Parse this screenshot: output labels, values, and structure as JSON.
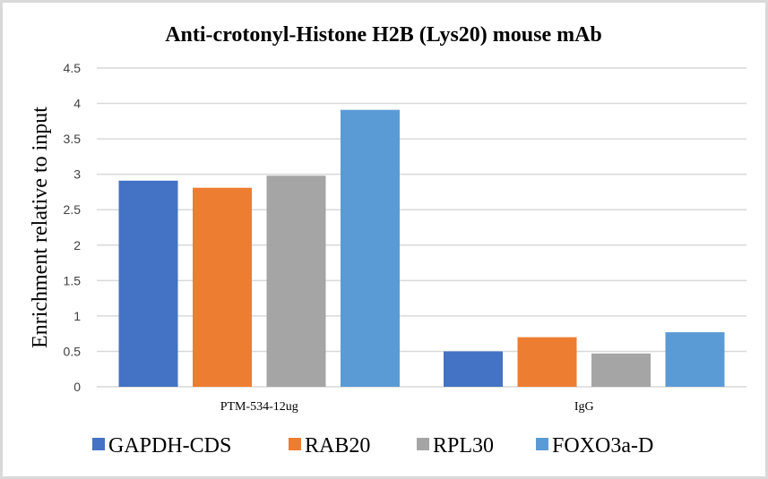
{
  "chart_data": {
    "type": "bar",
    "title": "Anti-crotonyl-Histone  H2B (Lys20) mouse mAb",
    "xlabel": "",
    "ylabel": "Enrichment  relative to input",
    "ylim": [
      0,
      4.5
    ],
    "yticks": [
      0,
      0.5,
      1,
      1.5,
      2,
      2.5,
      3,
      3.5,
      4,
      4.5
    ],
    "ytick_labels": [
      "0",
      "0.5",
      "1",
      "1.5",
      "2",
      "2.5",
      "3",
      "3.5",
      "4",
      "4.5"
    ],
    "grid": true,
    "legend_position": "bottom",
    "categories": [
      "PTM-534-12ug",
      "IgG"
    ],
    "series": [
      {
        "name": "GAPDH-CDS",
        "color": "#4472c4",
        "values": [
          2.91,
          0.5
        ]
      },
      {
        "name": "RAB20",
        "color": "#ed7d31",
        "values": [
          2.81,
          0.7
        ]
      },
      {
        "name": "RPL30",
        "color": "#a5a5a5",
        "values": [
          2.98,
          0.47
        ]
      },
      {
        "name": "FOXO3a-D",
        "color": "#5b9bd5",
        "values": [
          3.91,
          0.77
        ]
      }
    ]
  }
}
